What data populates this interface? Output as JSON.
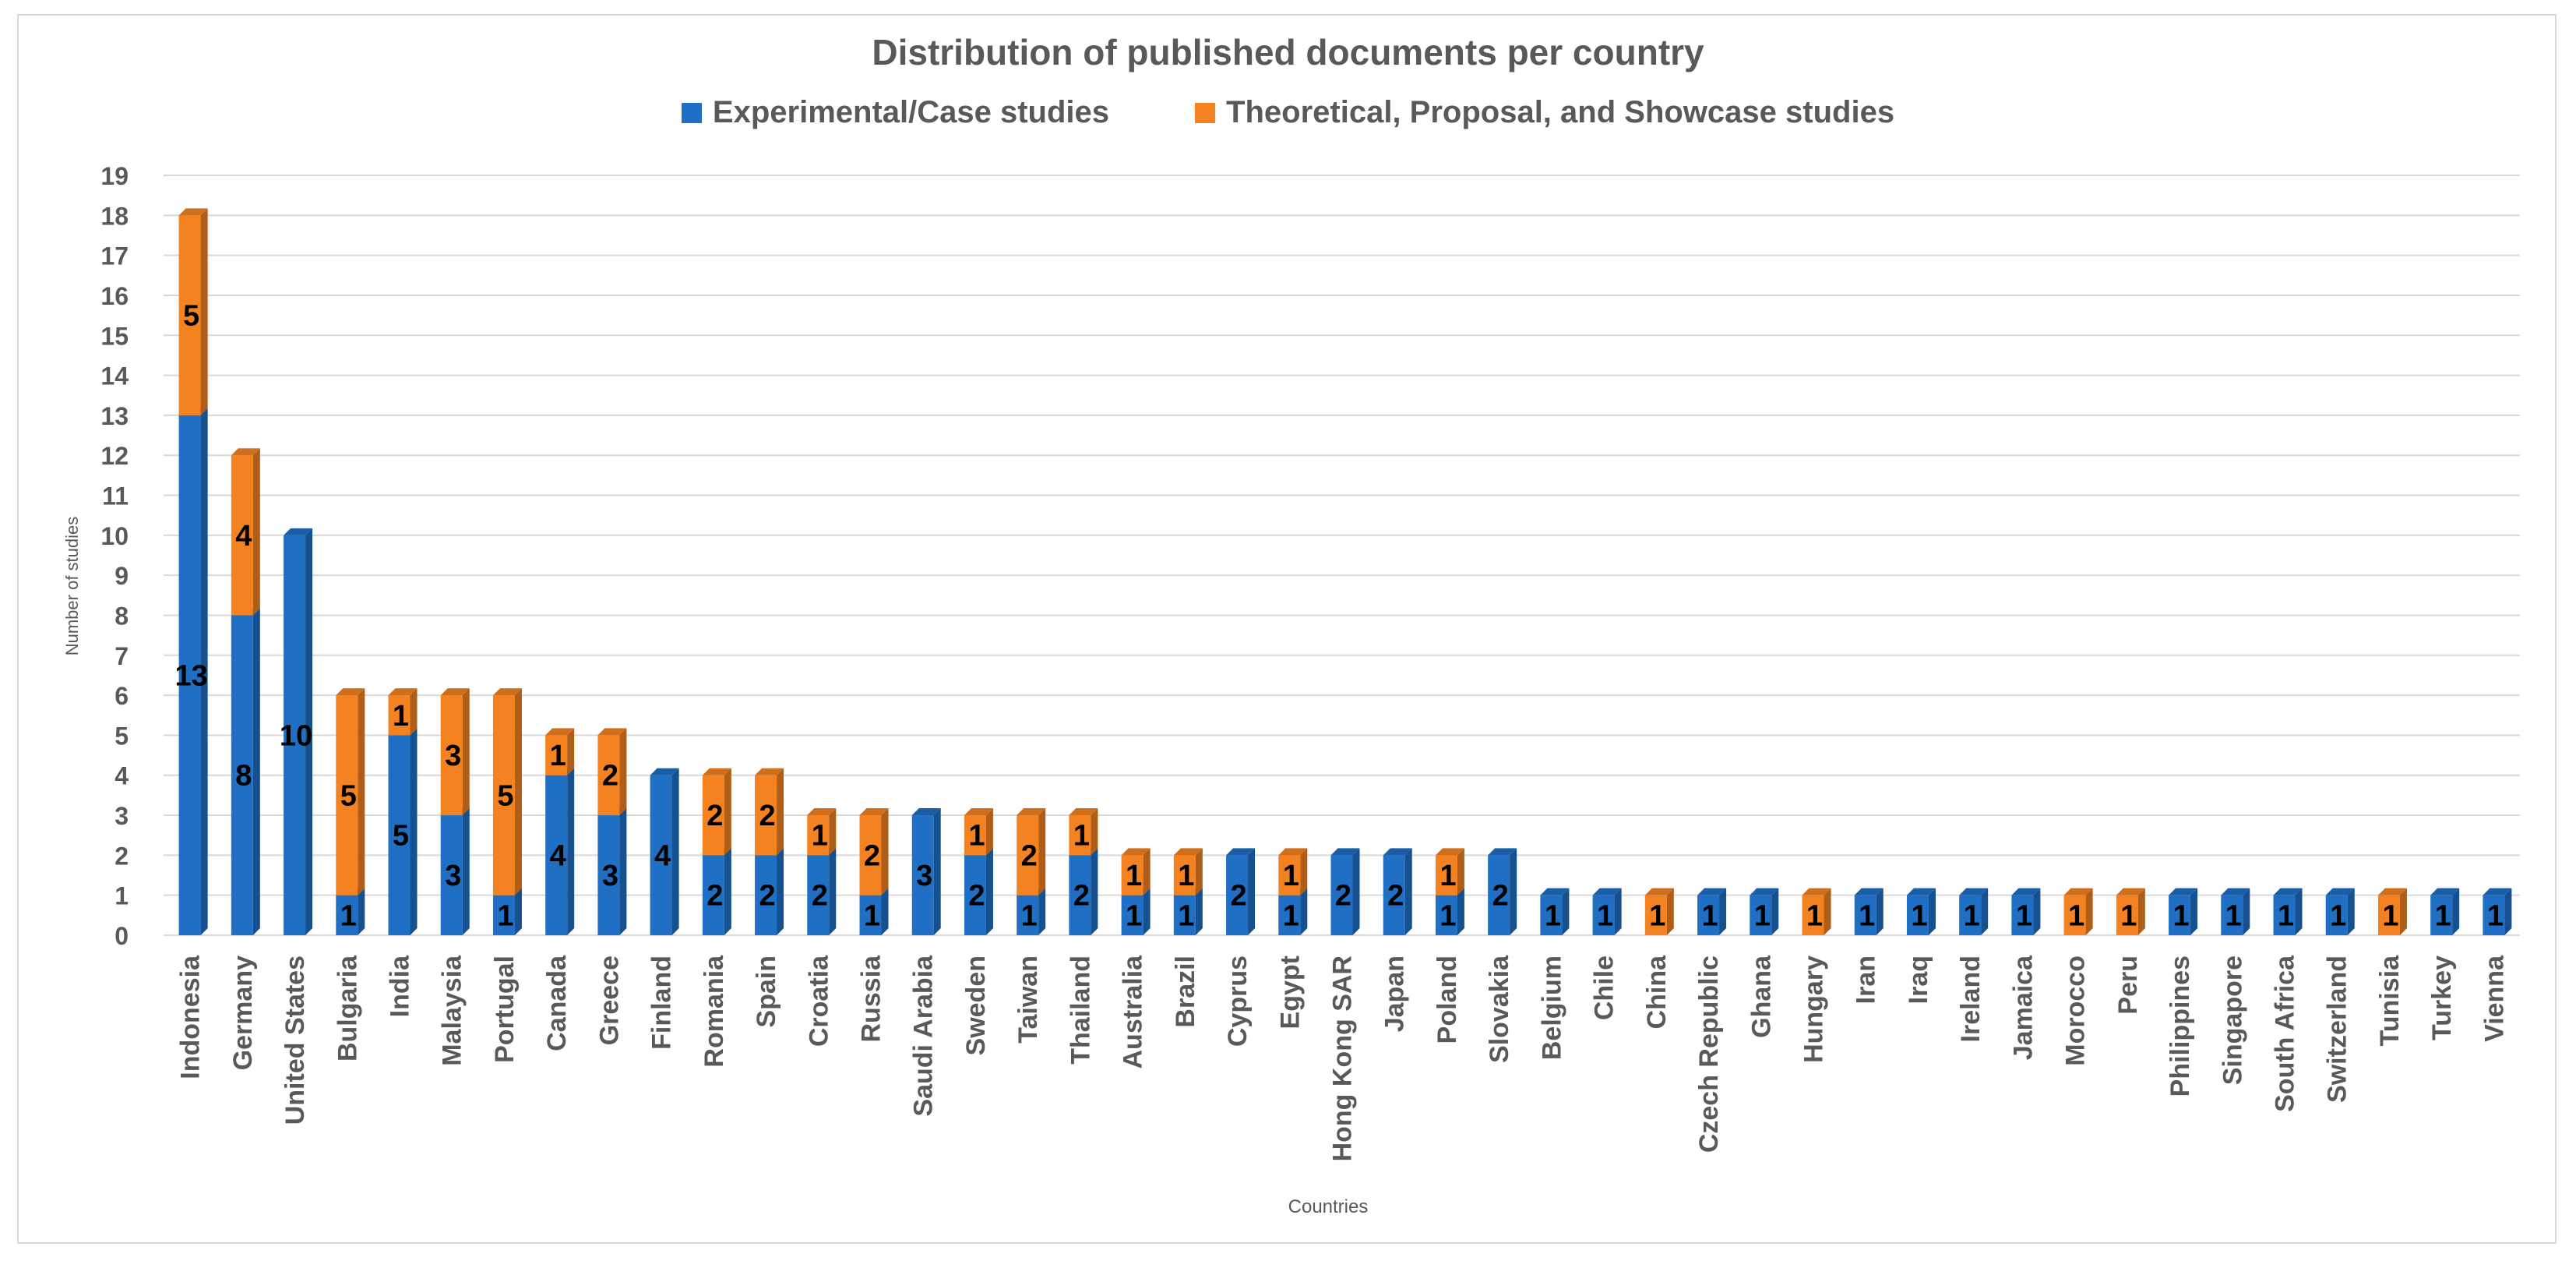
{
  "chart_data": {
    "type": "bar",
    "stacked": true,
    "title": "Distribution of published documents per country",
    "xlabel": "Countries",
    "ylabel": "Number of studies",
    "ylim": [
      0,
      19
    ],
    "yticks": [
      0,
      1,
      2,
      3,
      4,
      5,
      6,
      7,
      8,
      9,
      10,
      11,
      12,
      13,
      14,
      15,
      16,
      17,
      18,
      19
    ],
    "grid": true,
    "legend_position": "top",
    "categories": [
      "Indonesia",
      "Germany",
      "United States",
      "Bulgaria",
      "India",
      "Malaysia",
      "Portugal",
      "Canada",
      "Greece",
      "Finland",
      "Romania",
      "Spain",
      "Croatia",
      "Russia",
      "Saudi Arabia",
      "Sweden",
      "Taiwan",
      "Thailand",
      "Australia",
      "Brazil",
      "Cyprus",
      "Egypt",
      "Hong Kong SAR",
      "Japan",
      "Poland",
      "Slovakia",
      "Belgium",
      "Chile",
      "China",
      "Czech Republic",
      "Ghana",
      "Hungary",
      "Iran",
      "Iraq",
      "Ireland",
      "Jamaica",
      "Morocco",
      "Peru",
      "Philippines",
      "Singapore",
      "South Africa",
      "Switzerland",
      "Tunisia",
      "Turkey",
      "Vienna"
    ],
    "series": [
      {
        "name": "Experimental/Case studies",
        "color": "#1f6fc5",
        "values": [
          13,
          8,
          10,
          1,
          5,
          3,
          1,
          4,
          3,
          4,
          2,
          2,
          2,
          1,
          3,
          2,
          1,
          2,
          1,
          1,
          2,
          1,
          2,
          2,
          1,
          2,
          1,
          1,
          0,
          1,
          1,
          0,
          1,
          1,
          1,
          1,
          0,
          0,
          1,
          1,
          1,
          1,
          0,
          1,
          1
        ]
      },
      {
        "name": "Theoretical, Proposal, and Showcase studies",
        "color": "#f58220",
        "values": [
          5,
          4,
          0,
          5,
          1,
          3,
          5,
          1,
          2,
          0,
          2,
          2,
          1,
          2,
          0,
          1,
          2,
          1,
          1,
          1,
          0,
          1,
          0,
          0,
          1,
          0,
          0,
          0,
          1,
          0,
          0,
          1,
          0,
          0,
          0,
          0,
          1,
          1,
          0,
          0,
          0,
          0,
          1,
          0,
          0
        ]
      }
    ]
  }
}
